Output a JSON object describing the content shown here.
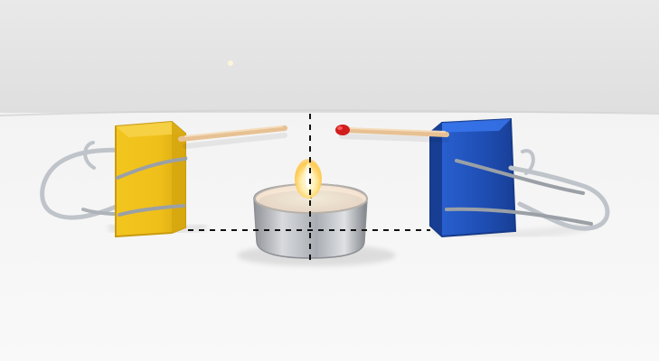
{
  "image": {
    "kind": "photo",
    "subject": "experiment-setup",
    "colors": {
      "wall": "#e6e6e6",
      "table": "#f2f2f2",
      "yellow_clip": "#f2c21b",
      "blue_clip": "#1f4fb5",
      "wire": "#b7bcc2",
      "matchstick_wood": "#e9c79a",
      "match_head": "#d21d1d",
      "candle_tin": "#c9c9c9",
      "candle_wax": "#fbf5ea",
      "flame": "#ffd36a",
      "guide_line": "#111111"
    },
    "icons": {
      "left_clip": "yellow-binder-clip-icon",
      "right_clip": "blue-binder-clip-icon",
      "left_match": "matchstick-icon",
      "right_match": "matchstick-with-red-head-icon",
      "candle": "tealight-candle-icon",
      "flame": "flame-icon"
    }
  }
}
